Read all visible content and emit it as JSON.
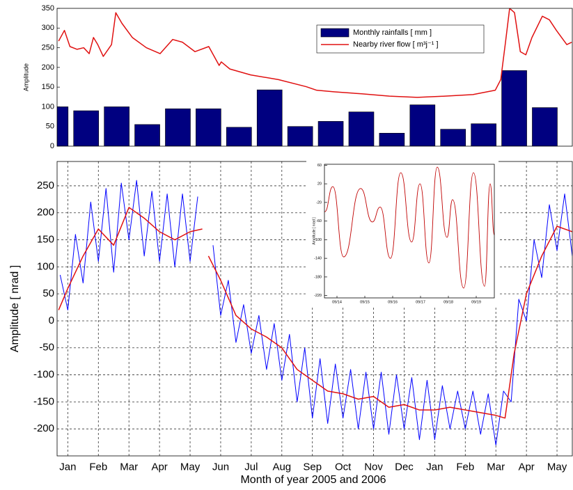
{
  "chart_data": [
    {
      "type": "bar",
      "ylabel": "Amplitude",
      "ylim": [
        0,
        350
      ],
      "yticks": [
        0,
        50,
        100,
        150,
        200,
        250,
        300,
        350
      ],
      "xlim": [
        -0.35,
        16.5
      ],
      "grid": false,
      "legend": "upper right",
      "series": [
        {
          "name": "Monthly rainfalls [ mm ]",
          "type": "bar",
          "color": "#000080",
          "x": [
            -0.4,
            0.6,
            1.6,
            2.6,
            3.6,
            4.6,
            5.6,
            6.6,
            7.6,
            8.6,
            9.6,
            10.6,
            11.6,
            12.6,
            13.6,
            14.6,
            15.6
          ],
          "values": [
            100,
            90,
            100,
            55,
            95,
            95,
            48,
            143,
            50,
            63,
            87,
            33,
            105,
            43,
            57,
            192,
            98
          ]
        },
        {
          "name": "Nearby river flow [ m³j⁻¹ ]",
          "type": "line",
          "color": "#e01010",
          "x": [
            -0.3,
            -0.11,
            0.07,
            0.3,
            0.52,
            0.7,
            0.84,
            0.98,
            1.16,
            1.43,
            1.57,
            1.77,
            2.11,
            2.57,
            3.02,
            3.43,
            3.75,
            4.16,
            4.61,
            4.95,
            5.02,
            5.3,
            5.98,
            6.89,
            7.8,
            8.14,
            8.7,
            9.61,
            10.52,
            11.43,
            12.34,
            13.25,
            13.98,
            14.16,
            14.32,
            14.45,
            14.61,
            14.8,
            14.98,
            15.18,
            15.52,
            15.75,
            15.98,
            16.32,
            16.48
          ],
          "values": [
            267,
            294,
            253,
            246,
            250,
            235,
            276,
            258,
            228,
            258,
            339,
            312,
            276,
            250,
            235,
            271,
            264,
            240,
            253,
            205,
            214,
            196,
            181,
            169,
            151,
            142,
            138,
            133,
            127,
            124,
            127,
            131,
            142,
            169,
            267,
            350,
            339,
            240,
            232,
            276,
            330,
            321,
            294,
            258,
            264
          ]
        }
      ]
    },
    {
      "type": "line",
      "xlabel": "Month of year 2005 and 2006",
      "ylabel": "Amplitude [ nrad ]",
      "ylim": [
        -250,
        295
      ],
      "yticks": [
        -200,
        -150,
        -100,
        -50,
        0,
        50,
        100,
        150,
        200,
        250
      ],
      "xlim": [
        -0.35,
        16.5
      ],
      "xticks": [
        {
          "value": 0,
          "label": "Jan"
        },
        {
          "value": 1,
          "label": "Feb"
        },
        {
          "value": 2,
          "label": "Mar"
        },
        {
          "value": 3,
          "label": "Apr"
        },
        {
          "value": 4,
          "label": "May"
        },
        {
          "value": 5,
          "label": "Jun"
        },
        {
          "value": 6,
          "label": "Jul"
        },
        {
          "value": 7,
          "label": "Aug"
        },
        {
          "value": 8,
          "label": "Sep"
        },
        {
          "value": 9,
          "label": "Oct"
        },
        {
          "value": 10,
          "label": "Nov"
        },
        {
          "value": 11,
          "label": "Dec"
        },
        {
          "value": 12,
          "label": "Jan"
        },
        {
          "value": 13,
          "label": "Feb"
        },
        {
          "value": 14,
          "label": "Mar"
        },
        {
          "value": 15,
          "label": "Apr"
        },
        {
          "value": 16,
          "label": "May"
        }
      ],
      "grid": true,
      "series": [
        {
          "color": "#0000ff",
          "x": [
            -0.25,
            0,
            0.25,
            0.5,
            0.75,
            1,
            1.25,
            1.5,
            1.75,
            2,
            2.25,
            2.5,
            2.75,
            3,
            3.25,
            3.5,
            3.75,
            4,
            4.25,
            4.5,
            4.75,
            5,
            5.25,
            5.5,
            5.75,
            6,
            6.25,
            6.5,
            6.75,
            7,
            7.25,
            7.5,
            7.75,
            8,
            8.25,
            8.5,
            8.75,
            9,
            9.25,
            9.5,
            9.75,
            10,
            10.25,
            10.5,
            10.75,
            11,
            11.25,
            11.5,
            11.75,
            12,
            12.25,
            12.5,
            12.75,
            13,
            13.25,
            13.5,
            13.75,
            14,
            14.25,
            14.5,
            14.75,
            15,
            15.25,
            15.5,
            15.75,
            16,
            16.25,
            16.5
          ],
          "values": [
            85,
            20,
            160,
            70,
            220,
            110,
            245,
            90,
            255,
            150,
            260,
            120,
            240,
            110,
            235,
            100,
            235,
            110,
            230,
            null,
            140,
            10,
            75,
            -40,
            30,
            -60,
            10,
            -90,
            -5,
            -110,
            -25,
            -150,
            -50,
            -180,
            -70,
            -190,
            -80,
            -180,
            -90,
            -200,
            -95,
            -200,
            -95,
            -210,
            -100,
            -200,
            -105,
            -220,
            -110,
            -220,
            -120,
            -200,
            -130,
            -200,
            -130,
            -210,
            -135,
            -230,
            -130,
            -150,
            40,
            0,
            150,
            80,
            215,
            130,
            235,
            120
          ]
        },
        {
          "color": "#e01010",
          "x": [
            -0.3,
            0,
            0.5,
            1,
            1.5,
            2,
            2.5,
            3,
            3.5,
            4,
            4.4,
            4.5,
            4.6,
            5,
            5.5,
            6,
            6.5,
            7,
            7.5,
            8,
            8.5,
            9,
            9.5,
            10,
            10.5,
            11,
            11.5,
            12,
            12.5,
            13,
            13.5,
            14,
            14.3,
            14.6,
            15,
            15.5,
            16,
            16.5
          ],
          "values": [
            20,
            60,
            120,
            170,
            140,
            210,
            190,
            165,
            150,
            165,
            170,
            null,
            120,
            75,
            10,
            -15,
            -30,
            -50,
            -90,
            -110,
            -130,
            -135,
            -145,
            -140,
            -160,
            -155,
            -165,
            -165,
            -160,
            -165,
            -170,
            -175,
            -180,
            -60,
            50,
            120,
            175,
            165
          ]
        }
      ]
    },
    {
      "type": "line",
      "ylabel": "Amplitude [ nrad ]",
      "ylim": [
        -225,
        62
      ],
      "yticks": [
        -220,
        -180,
        -140,
        -100,
        -60,
        -20,
        20,
        60
      ],
      "xlim": [
        -0.45,
        5.65
      ],
      "xticks": [
        {
          "value": 0,
          "label": "09/14"
        },
        {
          "value": 1,
          "label": "09/15"
        },
        {
          "value": 2,
          "label": "09/16"
        },
        {
          "value": 3,
          "label": "09/17"
        },
        {
          "value": 4,
          "label": "09/18"
        },
        {
          "value": 5,
          "label": "09/19"
        }
      ],
      "grid": false,
      "series": [
        {
          "color": "#c00000",
          "x": [
            -0.44,
            -0.15,
            0.24,
            0.85,
            1.27,
            1.55,
            1.92,
            2.29,
            2.68,
            2.98,
            3.3,
            3.6,
            3.95,
            4.15,
            4.55,
            4.9,
            5.3,
            5.5,
            5.65
          ],
          "values": [
            -40,
            14,
            -137,
            10,
            -62,
            -30,
            -140,
            44,
            -105,
            20,
            -150,
            56,
            -95,
            -14,
            -204,
            44,
            -200,
            20,
            -90
          ]
        }
      ]
    }
  ]
}
